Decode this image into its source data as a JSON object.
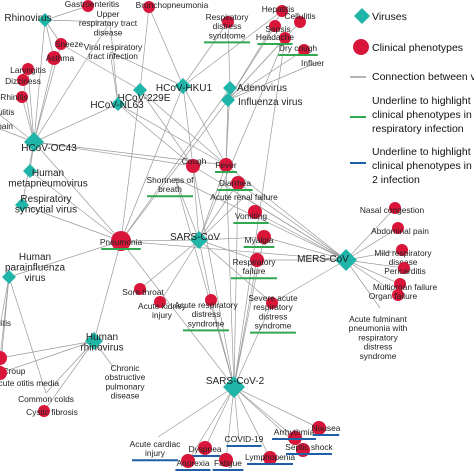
{
  "legend": {
    "viruses": "Viruses",
    "clinical": "Clinical phenotypes",
    "connection": "Connection between v",
    "green_1": "Underline to highlight c",
    "green_2": "clinical phenotypes in",
    "green_3": "respiratory infection",
    "blue_1": "Underline to highlight c",
    "blue_2": "clinical phenotypes in",
    "blue_3": "2 infection",
    "colors": {
      "virus": "#1fb5a8",
      "phenotype": "#d9163a",
      "edge": "#9a9a9a",
      "green": "#2fa84f",
      "blue": "#1f5fa8"
    }
  },
  "viruses": [
    {
      "id": "rhino1",
      "lines": [
        "Rhinovirus"
      ]
    },
    {
      "id": "hku1",
      "lines": [
        "HCoV-HKU1"
      ]
    },
    {
      "id": "229e",
      "lines": [
        "HCoV-229E"
      ]
    },
    {
      "id": "nl63",
      "lines": [
        "HCoV-NL63"
      ]
    },
    {
      "id": "adeno",
      "lines": [
        "Adenovirus"
      ]
    },
    {
      "id": "flu",
      "lines": [
        "Influenza virus"
      ]
    },
    {
      "id": "oc43",
      "lines": [
        "HCoV-OC43"
      ]
    },
    {
      "id": "hmpv",
      "lines": [
        "Human",
        "metapneumovirus"
      ]
    },
    {
      "id": "rsv",
      "lines": [
        "Respiratory",
        "syncytial virus"
      ]
    },
    {
      "id": "sars",
      "lines": [
        "SARS-CoV"
      ]
    },
    {
      "id": "mers",
      "lines": [
        "MERS-CoV"
      ]
    },
    {
      "id": "hpiv",
      "lines": [
        "Human",
        "parainfluenza",
        "virus"
      ]
    },
    {
      "id": "hrv",
      "lines": [
        "Human",
        "rhinovirus"
      ]
    },
    {
      "id": "sars2",
      "lines": [
        "SARS-CoV-2"
      ]
    }
  ],
  "phenotypes": [
    {
      "id": "gastro",
      "lines": [
        "Gastroenteritis"
      ]
    },
    {
      "id": "urti",
      "lines": [
        "Upper",
        "respiratory tract",
        "disease"
      ]
    },
    {
      "id": "broncho",
      "lines": [
        "Bronchopneumonia"
      ]
    },
    {
      "id": "rds",
      "lines": [
        "Respiratory",
        "distress",
        "syndrome"
      ],
      "underline": "green"
    },
    {
      "id": "hepatitis",
      "lines": [
        "Hepatitis"
      ]
    },
    {
      "id": "cellulitis",
      "lines": [
        "Cellulitis"
      ]
    },
    {
      "id": "sepsis",
      "lines": [
        "Sepsis"
      ]
    },
    {
      "id": "headache",
      "lines": [
        "Headache"
      ],
      "underline": "green"
    },
    {
      "id": "drycough",
      "lines": [
        "Dry cough"
      ],
      "underline": "green"
    },
    {
      "id": "influenza",
      "lines": [
        "Influenza"
      ]
    },
    {
      "id": "sneeze",
      "lines": [
        "Sneeze"
      ]
    },
    {
      "id": "asthma",
      "lines": [
        "Asthma"
      ]
    },
    {
      "id": "vrti",
      "lines": [
        "Viral respiratory",
        "tract infection"
      ]
    },
    {
      "id": "laryngitis",
      "lines": [
        "Laryngitis"
      ]
    },
    {
      "id": "dizziness",
      "lines": [
        "Dizziness"
      ]
    },
    {
      "id": "rhinitis",
      "lines": [
        "Rhinitis"
      ]
    },
    {
      "id": "iculitis",
      "lines": [
        "iculitis"
      ]
    },
    {
      "id": "pain",
      "lines": [
        "pain"
      ]
    },
    {
      "id": "cough",
      "lines": [
        "Cough"
      ]
    },
    {
      "id": "fever",
      "lines": [
        "Fever"
      ],
      "underline": "green"
    },
    {
      "id": "sob",
      "lines": [
        "Shortness of",
        "breath"
      ],
      "underline": "green"
    },
    {
      "id": "diarrhea",
      "lines": [
        "Diarrhea"
      ],
      "underline": "green"
    },
    {
      "id": "arf",
      "lines": [
        "Acute renal failure"
      ]
    },
    {
      "id": "vomiting",
      "lines": [
        "Vomiting"
      ],
      "underline": "green"
    },
    {
      "id": "myalgia",
      "lines": [
        "Myalgia"
      ],
      "underline": "green"
    },
    {
      "id": "pneumonia",
      "lines": [
        "Pneumonia"
      ],
      "underline": "green"
    },
    {
      "id": "resp_failure",
      "lines": [
        "Respiratory",
        "failure"
      ],
      "underline": "green"
    },
    {
      "id": "nasal",
      "lines": [
        "Nasal congestion"
      ]
    },
    {
      "id": "abdominal",
      "lines": [
        "Abdominal pain"
      ]
    },
    {
      "id": "mild",
      "lines": [
        "Mild respiratory",
        "disease"
      ]
    },
    {
      "id": "pericarditis",
      "lines": [
        "Pericarditis"
      ]
    },
    {
      "id": "multiorgan",
      "lines": [
        "Multiorgan failure"
      ]
    },
    {
      "id": "organ",
      "lines": [
        "Organ failure"
      ]
    },
    {
      "id": "sorethroat",
      "lines": [
        "Sore throat"
      ]
    },
    {
      "id": "aki",
      "lines": [
        "Acute kidney",
        "injury"
      ]
    },
    {
      "id": "ards",
      "lines": [
        "Acute respiratory",
        "distress",
        "syndrome"
      ],
      "underline": "green"
    },
    {
      "id": "sards",
      "lines": [
        "Severe acute",
        "respiratory",
        "distress",
        "syndrome"
      ],
      "underline": "green"
    },
    {
      "id": "afp",
      "lines": [
        "Acute fulminant",
        "pneumonia with",
        "respiratory",
        "distress",
        "syndrome"
      ]
    },
    {
      "id": "itis",
      "lines": [
        "itis"
      ]
    },
    {
      "id": "croup",
      "lines": [
        "Croup"
      ]
    },
    {
      "id": "aom",
      "lines": [
        "Acute otitis media"
      ]
    },
    {
      "id": "commoncolds",
      "lines": [
        "Common colds"
      ]
    },
    {
      "id": "cf",
      "lines": [
        "Cystic fibrosis"
      ]
    },
    {
      "id": "copd",
      "lines": [
        "Chronic",
        "obstructive",
        "pulmonary",
        "disease"
      ]
    },
    {
      "id": "acd",
      "lines": [
        "Acute cardiac",
        "injury"
      ],
      "underline": "blue"
    },
    {
      "id": "dyspnea",
      "lines": [
        "Dyspnea"
      ],
      "underline": "blue"
    },
    {
      "id": "anorexia",
      "lines": [
        "Anorexia"
      ],
      "underline": "blue"
    },
    {
      "id": "fatigue",
      "lines": [
        "Fatigue"
      ],
      "underline": "blue"
    },
    {
      "id": "covid19",
      "lines": [
        "COVID-19"
      ],
      "underline": "blue"
    },
    {
      "id": "lymphopenia",
      "lines": [
        "Lymphopenia"
      ],
      "underline": "blue"
    },
    {
      "id": "arrhythmia",
      "lines": [
        "Arrhythmia"
      ],
      "underline": "blue"
    },
    {
      "id": "nausea",
      "lines": [
        "Nausea"
      ],
      "underline": "blue"
    },
    {
      "id": "septic",
      "lines": [
        "Septic shock"
      ],
      "underline": "blue"
    }
  ],
  "edges": [
    [
      "rhino1",
      "sneeze"
    ],
    [
      "rhino1",
      "asthma"
    ],
    [
      "rhino1",
      "urti"
    ],
    [
      "rhino1",
      "oc43"
    ],
    [
      "rhino1",
      "gastro"
    ],
    [
      "hku1",
      "broncho"
    ],
    [
      "hku1",
      "rds"
    ],
    [
      "hku1",
      "vrti"
    ],
    [
      "hku1",
      "pneumonia"
    ],
    [
      "hku1",
      "fever"
    ],
    [
      "hku1",
      "cough"
    ],
    [
      "hku1",
      "hepatitis"
    ],
    [
      "229e",
      "sneeze"
    ],
    [
      "229e",
      "fever"
    ],
    [
      "229e",
      "cough"
    ],
    [
      "229e",
      "broncho"
    ],
    [
      "229e",
      "pneumonia"
    ],
    [
      "nl63",
      "urti"
    ],
    [
      "nl63",
      "vrti"
    ],
    [
      "nl63",
      "oc43"
    ],
    [
      "nl63",
      "cough"
    ],
    [
      "nl63",
      "fever"
    ],
    [
      "adeno",
      "rds"
    ],
    [
      "adeno",
      "pneumonia"
    ],
    [
      "adeno",
      "fever"
    ],
    [
      "flu",
      "headache"
    ],
    [
      "flu",
      "drycough"
    ],
    [
      "flu",
      "sepsis"
    ],
    [
      "flu",
      "cellulitis"
    ],
    [
      "flu",
      "hepatitis"
    ],
    [
      "flu",
      "pneumonia"
    ],
    [
      "flu",
      "influenza"
    ],
    [
      "flu",
      "fever"
    ],
    [
      "oc43",
      "sneeze"
    ],
    [
      "oc43",
      "asthma"
    ],
    [
      "oc43",
      "laryngitis"
    ],
    [
      "oc43",
      "dizziness"
    ],
    [
      "oc43",
      "rhinitis"
    ],
    [
      "oc43",
      "pain"
    ],
    [
      "oc43",
      "iculitis"
    ],
    [
      "oc43",
      "pneumonia"
    ],
    [
      "oc43",
      "fever"
    ],
    [
      "oc43",
      "cough"
    ],
    [
      "oc43",
      "urti"
    ],
    [
      "oc43",
      "hmpv"
    ],
    [
      "oc43",
      "rsv"
    ],
    [
      "hmpv",
      "pneumonia"
    ],
    [
      "rsv",
      "pneumonia"
    ],
    [
      "sars",
      "cough"
    ],
    [
      "sars",
      "fever"
    ],
    [
      "sars",
      "sob"
    ],
    [
      "sars",
      "diarrhea"
    ],
    [
      "sars",
      "myalgia"
    ],
    [
      "sars",
      "arf"
    ],
    [
      "sars",
      "pneumonia"
    ],
    [
      "sars",
      "resp_failure"
    ],
    [
      "sars",
      "sorethroat"
    ],
    [
      "sars",
      "aki"
    ],
    [
      "sars",
      "ards"
    ],
    [
      "sars",
      "sards"
    ],
    [
      "sars",
      "headache"
    ],
    [
      "mers",
      "fever"
    ],
    [
      "mers",
      "cough"
    ],
    [
      "mers",
      "nasal"
    ],
    [
      "mers",
      "abdominal"
    ],
    [
      "mers",
      "mild"
    ],
    [
      "mers",
      "pericarditis"
    ],
    [
      "mers",
      "multiorgan"
    ],
    [
      "mers",
      "organ"
    ],
    [
      "mers",
      "afp"
    ],
    [
      "mers",
      "vomiting"
    ],
    [
      "mers",
      "diarrhea"
    ],
    [
      "mers",
      "myalgia"
    ],
    [
      "mers",
      "resp_failure"
    ],
    [
      "mers",
      "sards"
    ],
    [
      "mers",
      "pneumonia"
    ],
    [
      "mers",
      "sob"
    ],
    [
      "mers",
      "arf"
    ],
    [
      "hpiv",
      "pneumonia"
    ],
    [
      "hpiv",
      "itis"
    ],
    [
      "hpiv",
      "croup"
    ],
    [
      "hpiv",
      "aom"
    ],
    [
      "hpiv",
      "commoncolds"
    ],
    [
      "hrv",
      "pneumonia"
    ],
    [
      "hrv",
      "copd"
    ],
    [
      "hrv",
      "cf"
    ],
    [
      "hrv",
      "commoncolds"
    ],
    [
      "hrv",
      "aom"
    ],
    [
      "hrv",
      "croup"
    ],
    [
      "sars2",
      "pneumonia"
    ],
    [
      "sars2",
      "fever"
    ],
    [
      "sars2",
      "cough"
    ],
    [
      "sars2",
      "acd"
    ],
    [
      "sars2",
      "dyspnea"
    ],
    [
      "sars2",
      "anorexia"
    ],
    [
      "sars2",
      "fatigue"
    ],
    [
      "sars2",
      "covid19"
    ],
    [
      "sars2",
      "lymphopenia"
    ],
    [
      "sars2",
      "arrhythmia"
    ],
    [
      "sars2",
      "nausea"
    ],
    [
      "sars2",
      "septic"
    ],
    [
      "sars2",
      "diarrhea"
    ],
    [
      "sars2",
      "myalgia"
    ],
    [
      "sars2",
      "ards"
    ],
    [
      "sars2",
      "sards"
    ],
    [
      "sars2",
      "headache"
    ],
    [
      "sars2",
      "resp_failure"
    ],
    [
      "sars2",
      "sob"
    ]
  ]
}
